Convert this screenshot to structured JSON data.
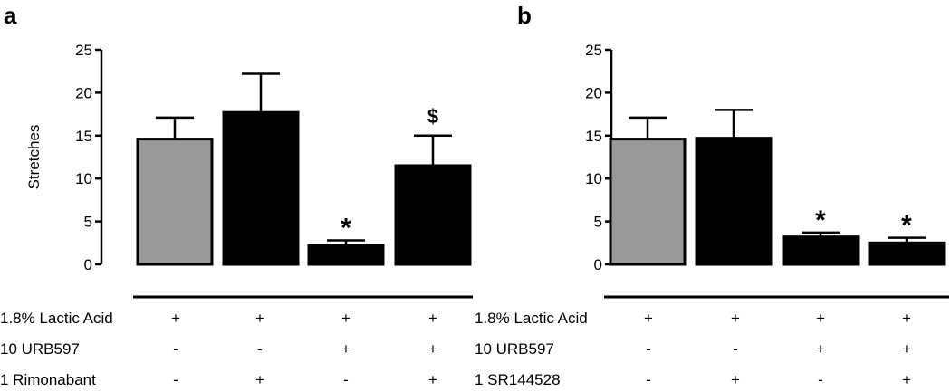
{
  "chart_data": [
    {
      "type": "bar",
      "panel": "a",
      "ylabel": "Stretches",
      "ylim": [
        0,
        25
      ],
      "yticks": [
        0,
        5,
        10,
        15,
        20,
        25
      ],
      "colors": [
        "#999999",
        "#000000",
        "#000000",
        "#000000"
      ],
      "values": [
        14.6,
        17.7,
        2.2,
        11.5
      ],
      "errors": [
        2.5,
        4.5,
        0.6,
        3.5
      ],
      "annotations": [
        "",
        "",
        "*",
        "$"
      ],
      "table": {
        "rows": [
          {
            "label": "1.8% Lactic Acid",
            "marks": [
              "+",
              "+",
              "+",
              "+"
            ]
          },
          {
            "label": "10 URB597",
            "marks": [
              "-",
              "-",
              "+",
              "+"
            ]
          },
          {
            "label": "1 Rimonabant",
            "marks": [
              "-",
              "+",
              "-",
              "+"
            ]
          }
        ]
      }
    },
    {
      "type": "bar",
      "panel": "b",
      "ylabel": "",
      "ylim": [
        0,
        25
      ],
      "yticks": [
        0,
        5,
        10,
        15,
        20,
        25
      ],
      "colors": [
        "#999999",
        "#000000",
        "#000000",
        "#000000"
      ],
      "values": [
        14.6,
        14.7,
        3.2,
        2.5
      ],
      "errors": [
        2.5,
        3.3,
        0.5,
        0.6
      ],
      "annotations": [
        "",
        "",
        "*",
        "*"
      ],
      "table": {
        "rows": [
          {
            "label": "1.8% Lactic Acid",
            "marks": [
              "+",
              "+",
              "+",
              "+"
            ]
          },
          {
            "label": "10 URB597",
            "marks": [
              "-",
              "-",
              "+",
              "+"
            ]
          },
          {
            "label": "1 SR144528",
            "marks": [
              "-",
              "+",
              "-",
              "+"
            ]
          }
        ]
      }
    }
  ]
}
